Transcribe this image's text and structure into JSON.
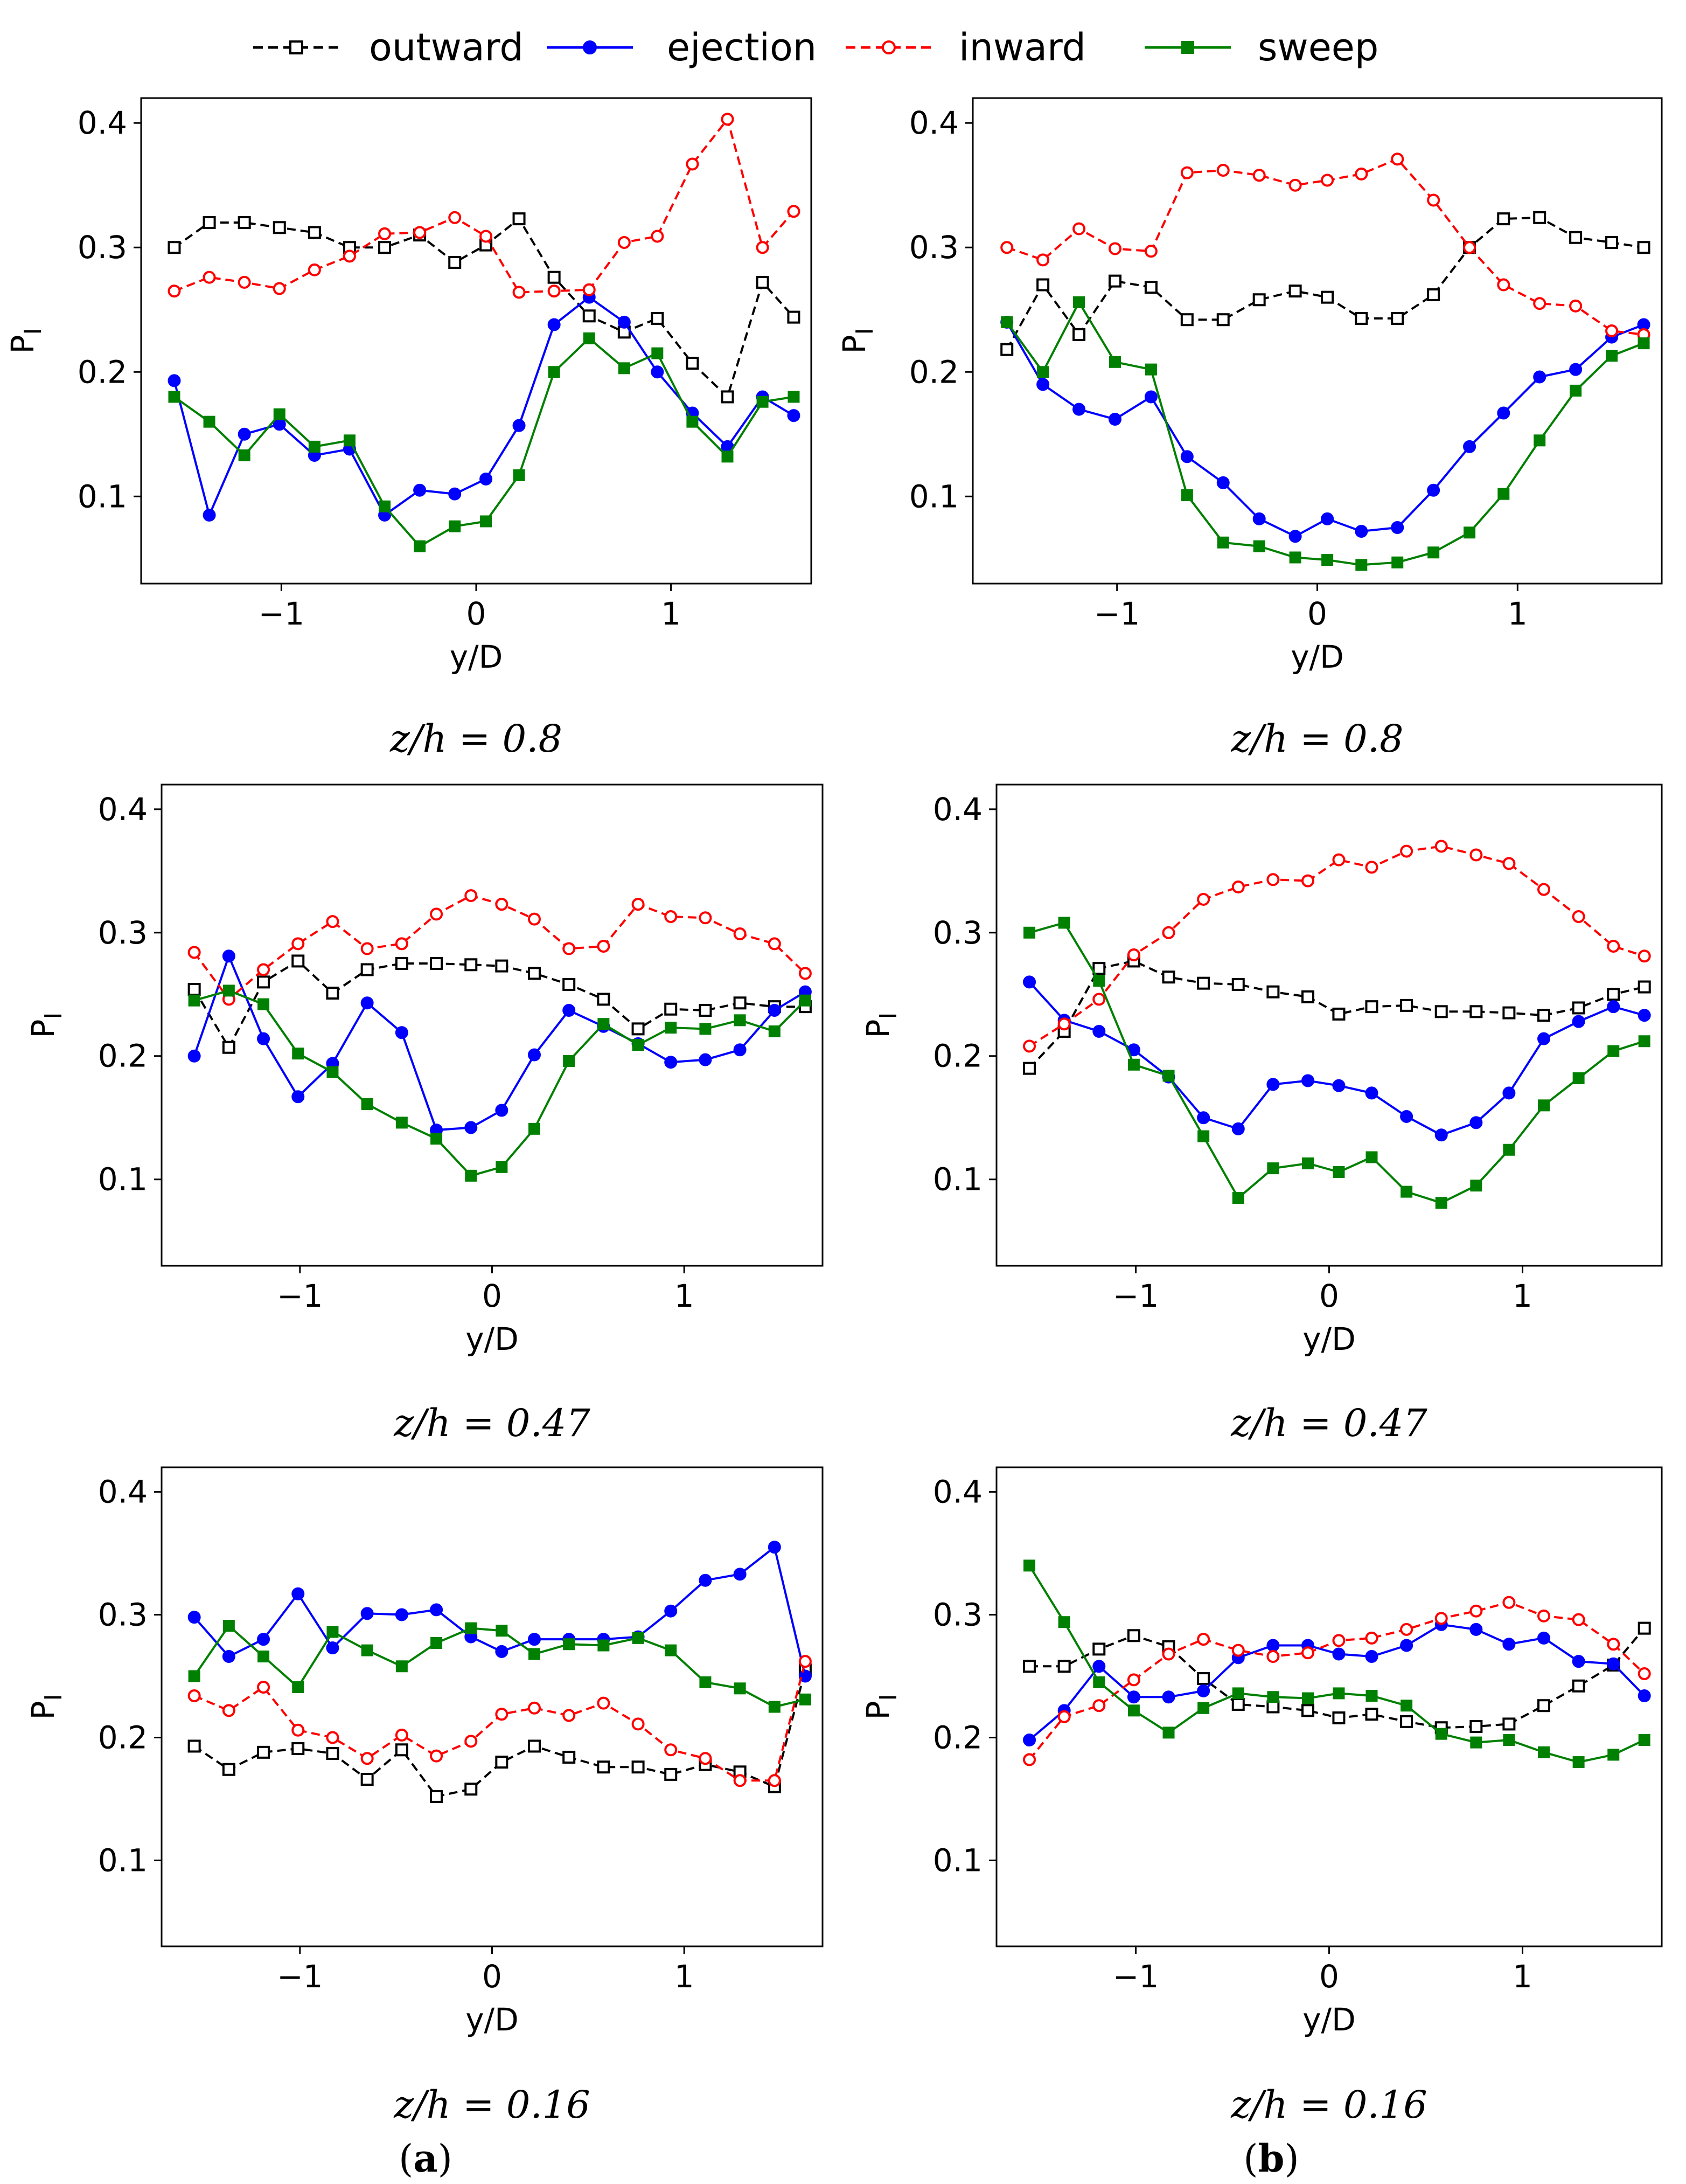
{
  "legend": [
    {
      "key": "outward",
      "label": "outward",
      "color": "#000000",
      "dash": true,
      "marker": "square-open"
    },
    {
      "key": "ejection",
      "label": "ejection",
      "color": "#0000ff",
      "dash": false,
      "marker": "circle-filled"
    },
    {
      "key": "inward",
      "label": "inward",
      "color": "#ff0000",
      "dash": true,
      "marker": "circle-open"
    },
    {
      "key": "sweep",
      "label": "sweep",
      "color": "#008000",
      "dash": false,
      "marker": "square-filled"
    }
  ],
  "panel_labels": {
    "a": {
      "open": "(",
      "letter": "a",
      "close": ")"
    },
    "b": {
      "open": "(",
      "letter": "b",
      "close": ")"
    }
  },
  "chart_data": [
    {
      "id": "a-top",
      "type": "line",
      "column": "a",
      "row": 0,
      "caption": "z/h = 0.8",
      "xlabel": "y/D",
      "ylabel": "P",
      "ylabel_sub": "I",
      "xlim": [
        -1.72,
        1.72
      ],
      "ylim": [
        0.03,
        0.42
      ],
      "xticks": [
        -1,
        0,
        1
      ],
      "xtick_labels": [
        "−1",
        "0",
        "1"
      ],
      "yticks": [
        0.1,
        0.2,
        0.3,
        0.4
      ],
      "ytick_labels": [
        "0.1",
        "0.2",
        "0.3",
        "0.4"
      ],
      "x": [
        -1.55,
        -1.37,
        -1.19,
        -1.01,
        -0.83,
        -0.65,
        -0.47,
        -0.29,
        -0.11,
        0.05,
        0.22,
        0.4,
        0.58,
        0.76,
        0.93,
        1.11,
        1.29,
        1.47,
        1.63
      ],
      "series": [
        {
          "name": "outward",
          "values": [
            0.3,
            0.32,
            0.32,
            0.316,
            0.312,
            0.3,
            0.3,
            0.31,
            0.288,
            0.302,
            0.323,
            0.276,
            0.245,
            0.232,
            0.243,
            0.207,
            0.18,
            0.272,
            0.244
          ]
        },
        {
          "name": "ejection",
          "values": [
            0.193,
            0.085,
            0.15,
            0.158,
            0.133,
            0.138,
            0.085,
            0.105,
            0.102,
            0.114,
            0.157,
            0.238,
            0.26,
            0.24,
            0.2,
            0.167,
            0.14,
            0.18,
            0.165
          ]
        },
        {
          "name": "inward",
          "values": [
            0.265,
            0.276,
            0.272,
            0.267,
            0.282,
            0.293,
            0.311,
            0.312,
            0.324,
            0.309,
            0.264,
            0.265,
            0.266,
            0.304,
            0.309,
            0.367,
            0.403,
            0.3,
            0.329
          ]
        },
        {
          "name": "sweep",
          "values": [
            0.18,
            0.16,
            0.133,
            0.166,
            0.14,
            0.145,
            0.092,
            0.06,
            0.076,
            0.08,
            0.117,
            0.2,
            0.227,
            0.203,
            0.215,
            0.16,
            0.132,
            0.176,
            0.18
          ]
        }
      ]
    },
    {
      "id": "b-top",
      "type": "line",
      "column": "b",
      "row": 0,
      "caption": "z/h = 0.8",
      "xlabel": "y/D",
      "ylabel": "P",
      "ylabel_sub": "I",
      "xlim": [
        -1.72,
        1.72
      ],
      "ylim": [
        0.03,
        0.42
      ],
      "xticks": [
        -1,
        0,
        1
      ],
      "xtick_labels": [
        "−1",
        "0",
        "1"
      ],
      "yticks": [
        0.1,
        0.2,
        0.3,
        0.4
      ],
      "ytick_labels": [
        "0.1",
        "0.2",
        "0.3",
        "0.4"
      ],
      "x": [
        -1.55,
        -1.37,
        -1.19,
        -1.01,
        -0.83,
        -0.65,
        -0.47,
        -0.29,
        -0.11,
        0.05,
        0.22,
        0.4,
        0.58,
        0.76,
        0.93,
        1.11,
        1.29,
        1.47,
        1.63
      ],
      "series": [
        {
          "name": "outward",
          "values": [
            0.218,
            0.27,
            0.23,
            0.273,
            0.268,
            0.242,
            0.242,
            0.258,
            0.265,
            0.26,
            0.243,
            0.243,
            0.262,
            0.3,
            0.323,
            0.324,
            0.308,
            0.304,
            0.3
          ]
        },
        {
          "name": "ejection",
          "values": [
            0.24,
            0.19,
            0.17,
            0.162,
            0.18,
            0.132,
            0.111,
            0.082,
            0.068,
            0.082,
            0.072,
            0.075,
            0.105,
            0.14,
            0.167,
            0.196,
            0.202,
            0.228,
            0.238
          ]
        },
        {
          "name": "inward",
          "values": [
            0.3,
            0.29,
            0.315,
            0.299,
            0.297,
            0.36,
            0.362,
            0.358,
            0.35,
            0.354,
            0.359,
            0.371,
            0.338,
            0.3,
            0.27,
            0.255,
            0.253,
            0.233,
            0.23
          ]
        },
        {
          "name": "sweep",
          "values": [
            0.24,
            0.2,
            0.256,
            0.208,
            0.202,
            0.101,
            0.063,
            0.06,
            0.051,
            0.049,
            0.045,
            0.047,
            0.055,
            0.071,
            0.102,
            0.145,
            0.185,
            0.213,
            0.223
          ]
        }
      ]
    },
    {
      "id": "a-mid",
      "type": "line",
      "column": "a",
      "row": 1,
      "caption": "z/h = 0.47",
      "xlabel": "y/D",
      "ylabel": "P",
      "ylabel_sub": "I",
      "xlim": [
        -1.72,
        1.72
      ],
      "ylim": [
        0.03,
        0.42
      ],
      "xticks": [
        -1,
        0,
        1
      ],
      "xtick_labels": [
        "−1",
        "0",
        "1"
      ],
      "yticks": [
        0.1,
        0.2,
        0.3,
        0.4
      ],
      "ytick_labels": [
        "0.1",
        "0.2",
        "0.3",
        "0.4"
      ],
      "x": [
        -1.55,
        -1.37,
        -1.19,
        -1.01,
        -0.83,
        -0.65,
        -0.47,
        -0.29,
        -0.11,
        0.05,
        0.22,
        0.4,
        0.58,
        0.76,
        0.93,
        1.11,
        1.29,
        1.47,
        1.63
      ],
      "series": [
        {
          "name": "outward",
          "values": [
            0.254,
            0.207,
            0.26,
            0.277,
            0.251,
            0.27,
            0.275,
            0.275,
            0.274,
            0.273,
            0.267,
            0.258,
            0.246,
            0.222,
            0.238,
            0.237,
            0.243,
            0.24,
            0.24
          ]
        },
        {
          "name": "ejection",
          "values": [
            0.2,
            0.281,
            0.214,
            0.167,
            0.194,
            0.243,
            0.219,
            0.14,
            0.142,
            0.156,
            0.201,
            0.237,
            0.224,
            0.21,
            0.195,
            0.197,
            0.205,
            0.237,
            0.252
          ]
        },
        {
          "name": "inward",
          "values": [
            0.284,
            0.246,
            0.27,
            0.291,
            0.309,
            0.287,
            0.291,
            0.315,
            0.33,
            0.323,
            0.311,
            0.287,
            0.289,
            0.323,
            0.313,
            0.312,
            0.299,
            0.291,
            0.267
          ]
        },
        {
          "name": "sweep",
          "values": [
            0.245,
            0.253,
            0.242,
            0.202,
            0.187,
            0.161,
            0.146,
            0.133,
            0.103,
            0.11,
            0.141,
            0.196,
            0.226,
            0.209,
            0.223,
            0.222,
            0.229,
            0.22,
            0.245
          ]
        }
      ]
    },
    {
      "id": "b-mid",
      "type": "line",
      "column": "b",
      "row": 1,
      "caption": "z/h = 0.47",
      "xlabel": "y/D",
      "ylabel": "P",
      "ylabel_sub": "I",
      "xlim": [
        -1.72,
        1.72
      ],
      "ylim": [
        0.03,
        0.42
      ],
      "xticks": [
        -1,
        0,
        1
      ],
      "xtick_labels": [
        "−1",
        "0",
        "1"
      ],
      "yticks": [
        0.1,
        0.2,
        0.3,
        0.4
      ],
      "ytick_labels": [
        "0.1",
        "0.2",
        "0.3",
        "0.4"
      ],
      "x": [
        -1.55,
        -1.37,
        -1.19,
        -1.01,
        -0.83,
        -0.65,
        -0.47,
        -0.29,
        -0.11,
        0.05,
        0.22,
        0.4,
        0.58,
        0.76,
        0.93,
        1.11,
        1.29,
        1.47,
        1.63
      ],
      "series": [
        {
          "name": "outward",
          "values": [
            0.19,
            0.22,
            0.271,
            0.277,
            0.264,
            0.259,
            0.258,
            0.252,
            0.248,
            0.234,
            0.24,
            0.241,
            0.236,
            0.236,
            0.235,
            0.233,
            0.239,
            0.25,
            0.256
          ]
        },
        {
          "name": "ejection",
          "values": [
            0.26,
            0.229,
            0.22,
            0.205,
            0.183,
            0.15,
            0.141,
            0.177,
            0.18,
            0.176,
            0.17,
            0.151,
            0.136,
            0.146,
            0.17,
            0.214,
            0.228,
            0.24,
            0.233
          ]
        },
        {
          "name": "inward",
          "values": [
            0.208,
            0.226,
            0.246,
            0.282,
            0.3,
            0.327,
            0.337,
            0.343,
            0.342,
            0.359,
            0.353,
            0.366,
            0.37,
            0.363,
            0.356,
            0.335,
            0.313,
            0.289,
            0.281
          ]
        },
        {
          "name": "sweep",
          "values": [
            0.3,
            0.308,
            0.261,
            0.193,
            0.184,
            0.135,
            0.085,
            0.109,
            0.113,
            0.106,
            0.118,
            0.09,
            0.081,
            0.095,
            0.124,
            0.16,
            0.182,
            0.204,
            0.212
          ]
        }
      ]
    },
    {
      "id": "a-bot",
      "type": "line",
      "column": "a",
      "row": 2,
      "caption": "z/h = 0.16",
      "xlabel": "y/D",
      "ylabel": "P",
      "ylabel_sub": "I",
      "xlim": [
        -1.72,
        1.72
      ],
      "ylim": [
        0.03,
        0.42
      ],
      "xticks": [
        -1,
        0,
        1
      ],
      "xtick_labels": [
        "−1",
        "0",
        "1"
      ],
      "yticks": [
        0.1,
        0.2,
        0.3,
        0.4
      ],
      "ytick_labels": [
        "0.1",
        "0.2",
        "0.3",
        "0.4"
      ],
      "x": [
        -1.55,
        -1.37,
        -1.19,
        -1.01,
        -0.83,
        -0.65,
        -0.47,
        -0.29,
        -0.11,
        0.05,
        0.22,
        0.4,
        0.58,
        0.76,
        0.93,
        1.11,
        1.29,
        1.47,
        1.63
      ],
      "series": [
        {
          "name": "outward",
          "values": [
            0.193,
            0.174,
            0.188,
            0.191,
            0.187,
            0.166,
            0.19,
            0.152,
            0.158,
            0.18,
            0.193,
            0.184,
            0.176,
            0.176,
            0.17,
            0.178,
            0.172,
            0.16,
            0.255
          ]
        },
        {
          "name": "ejection",
          "values": [
            0.298,
            0.266,
            0.28,
            0.317,
            0.273,
            0.301,
            0.3,
            0.304,
            0.282,
            0.27,
            0.28,
            0.28,
            0.28,
            0.282,
            0.303,
            0.328,
            0.333,
            0.355,
            0.25
          ]
        },
        {
          "name": "inward",
          "values": [
            0.234,
            0.222,
            0.241,
            0.206,
            0.2,
            0.183,
            0.202,
            0.185,
            0.197,
            0.219,
            0.224,
            0.218,
            0.228,
            0.211,
            0.19,
            0.183,
            0.165,
            0.165,
            0.262
          ]
        },
        {
          "name": "sweep",
          "values": [
            0.25,
            0.291,
            0.266,
            0.241,
            0.286,
            0.271,
            0.258,
            0.277,
            0.289,
            0.287,
            0.268,
            0.276,
            0.275,
            0.281,
            0.271,
            0.245,
            0.24,
            0.225,
            0.231
          ]
        }
      ]
    },
    {
      "id": "b-bot",
      "type": "line",
      "column": "b",
      "row": 2,
      "caption": "z/h = 0.16",
      "xlabel": "y/D",
      "ylabel": "P",
      "ylabel_sub": "I",
      "xlim": [
        -1.72,
        1.72
      ],
      "ylim": [
        0.03,
        0.42
      ],
      "xticks": [
        -1,
        0,
        1
      ],
      "xtick_labels": [
        "−1",
        "0",
        "1"
      ],
      "yticks": [
        0.1,
        0.2,
        0.3,
        0.4
      ],
      "ytick_labels": [
        "0.1",
        "0.2",
        "0.3",
        "0.4"
      ],
      "x": [
        -1.55,
        -1.37,
        -1.19,
        -1.01,
        -0.83,
        -0.65,
        -0.47,
        -0.29,
        -0.11,
        0.05,
        0.22,
        0.4,
        0.58,
        0.76,
        0.93,
        1.11,
        1.29,
        1.47,
        1.63
      ],
      "series": [
        {
          "name": "outward",
          "values": [
            0.258,
            0.258,
            0.272,
            0.283,
            0.274,
            0.248,
            0.227,
            0.225,
            0.222,
            0.216,
            0.219,
            0.213,
            0.208,
            0.209,
            0.211,
            0.226,
            0.242,
            0.259,
            0.289
          ]
        },
        {
          "name": "ejection",
          "values": [
            0.198,
            0.222,
            0.258,
            0.233,
            0.233,
            0.238,
            0.265,
            0.275,
            0.275,
            0.268,
            0.266,
            0.275,
            0.292,
            0.288,
            0.276,
            0.281,
            0.262,
            0.26,
            0.234
          ]
        },
        {
          "name": "inward",
          "values": [
            0.182,
            0.217,
            0.226,
            0.247,
            0.268,
            0.28,
            0.271,
            0.266,
            0.269,
            0.279,
            0.281,
            0.288,
            0.297,
            0.303,
            0.31,
            0.299,
            0.296,
            0.276,
            0.252
          ]
        },
        {
          "name": "sweep",
          "values": [
            0.34,
            0.294,
            0.245,
            0.222,
            0.204,
            0.224,
            0.236,
            0.233,
            0.232,
            0.236,
            0.234,
            0.226,
            0.203,
            0.196,
            0.198,
            0.188,
            0.18,
            0.186,
            0.198
          ]
        }
      ]
    }
  ]
}
